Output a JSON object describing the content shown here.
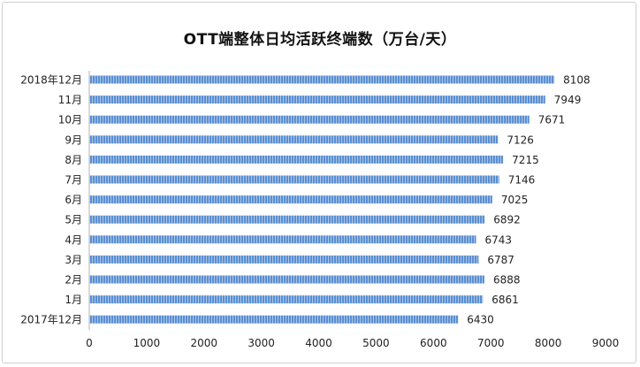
{
  "chart_data": {
    "type": "bar",
    "orientation": "horizontal",
    "title": "OTT端整体日均活跃终端数（万台/天）",
    "categories": [
      "2018年12月",
      "11月",
      "10月",
      "9月",
      "8月",
      "7月",
      "6月",
      "5月",
      "4月",
      "3月",
      "2月",
      "1月",
      "2017年12月"
    ],
    "values": [
      8108,
      7949,
      7671,
      7126,
      7215,
      7146,
      7025,
      6892,
      6743,
      6787,
      6888,
      6861,
      6430
    ],
    "xlim": [
      0,
      9000
    ],
    "xticks": [
      0,
      1000,
      2000,
      3000,
      4000,
      5000,
      6000,
      7000,
      8000,
      9000
    ],
    "grid": false,
    "legend": "none",
    "bar_color": "#5b8fd0",
    "bar_stripe_color": "#a9c6ec"
  }
}
